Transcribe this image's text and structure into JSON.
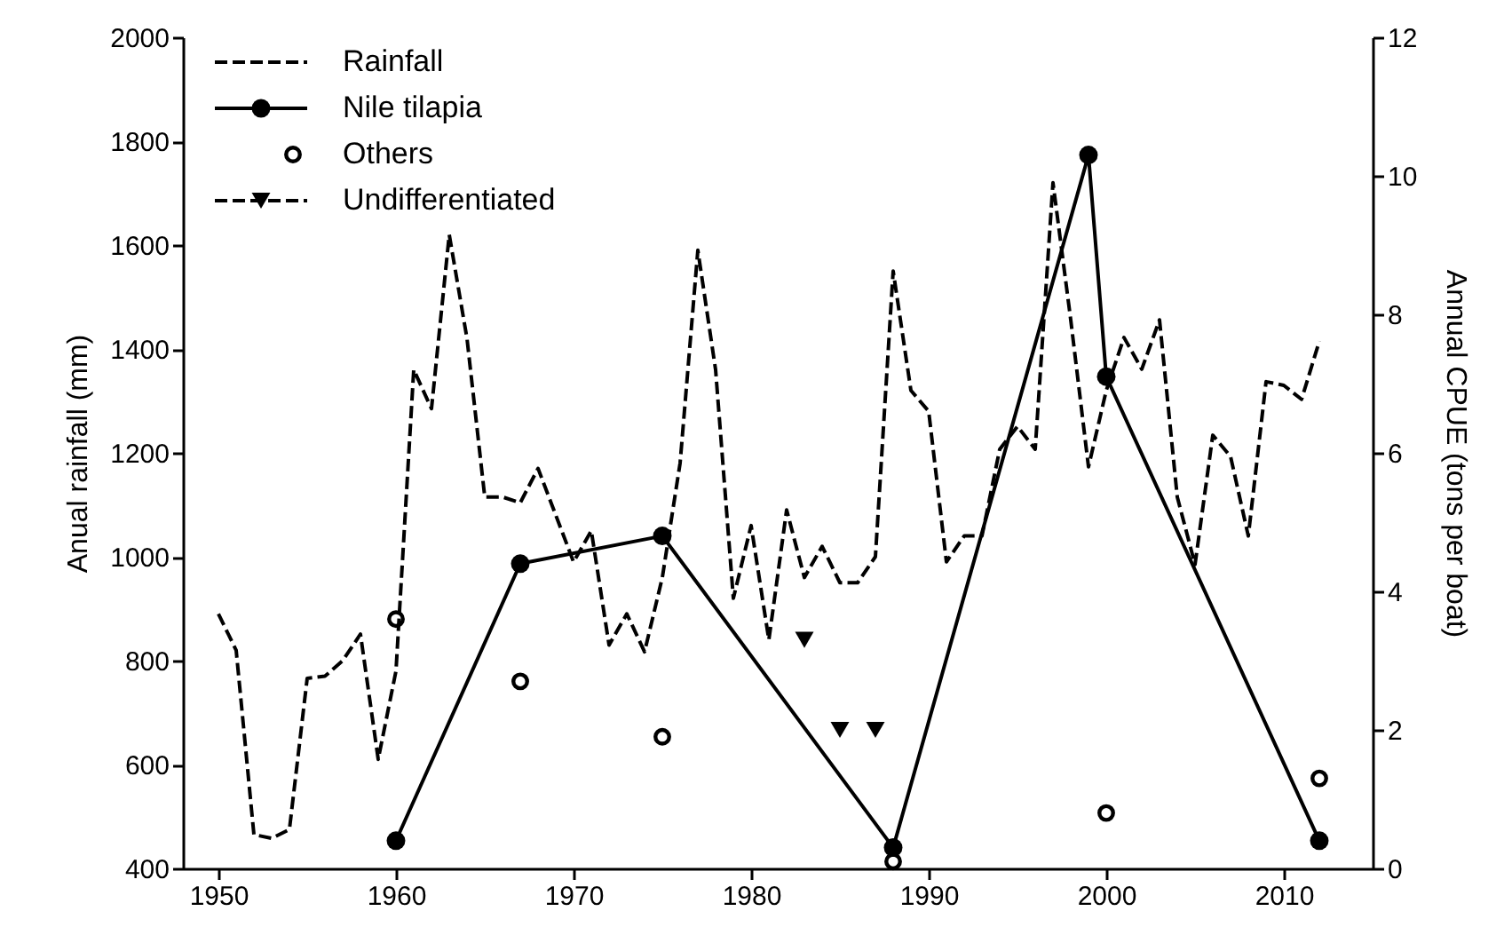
{
  "chart_data": {
    "type": "line",
    "xlim": [
      1948,
      2015
    ],
    "xticks": [
      1950,
      1960,
      1970,
      1980,
      1990,
      2000,
      2010
    ],
    "ylim": [
      400,
      2000
    ],
    "yticks": [
      400,
      600,
      800,
      1000,
      1200,
      1400,
      1600,
      1800,
      2000
    ],
    "y2lim": [
      0,
      12
    ],
    "y2ticks": [
      0,
      2,
      4,
      6,
      8,
      10,
      12
    ],
    "ylabel": "Anual rainfall (mm)",
    "y2label": "Annual CPUE (tons per boat)",
    "grid": false,
    "legend": "top left",
    "series": [
      {
        "name": "Rainfall",
        "line_style": "dashed",
        "marker": "none",
        "color": "#000000",
        "x": [
          1950,
          1951,
          1952,
          1953,
          1954,
          1955,
          1956,
          1957,
          1958,
          1959,
          1960,
          1961,
          1962,
          1963,
          1964,
          1965,
          1966,
          1967,
          1968,
          1969,
          1970,
          1971,
          1972,
          1973,
          1974,
          1975,
          1976,
          1977,
          1978,
          1979,
          1980,
          1981,
          1982,
          1983,
          1984,
          1985,
          1986,
          1987,
          1988,
          1989,
          1990,
          1991,
          1992,
          1993,
          1994,
          1995,
          1996,
          1997,
          1998,
          1999,
          2000,
          2001,
          2002,
          2003,
          2004,
          2005,
          2006,
          2007,
          2008,
          2009,
          2010,
          2011,
          2012
        ],
        "values": [
          890,
          820,
          465,
          458,
          475,
          766,
          770,
          800,
          851,
          610,
          780,
          1360,
          1285,
          1620,
          1420,
          1115,
          1115,
          1104,
          1170,
          1080,
          990,
          1050,
          830,
          890,
          817,
          960,
          1180,
          1590,
          1360,
          920,
          1060,
          840,
          1090,
          960,
          1020,
          950,
          950,
          1000,
          1550,
          1320,
          1280,
          990,
          1040,
          1040,
          1207,
          1251,
          1207,
          1720,
          1456,
          1173,
          1320,
          1422,
          1361,
          1456,
          1115,
          985,
          1234,
          1193,
          1040,
          1337,
          1330,
          1303,
          1415
        ]
      },
      {
        "name": "Nile tilapia",
        "type": "line",
        "line_style": "solid",
        "marker": "circle",
        "axis": "y2",
        "color": "#000000",
        "x": [
          1960,
          1967,
          1975,
          1988,
          1999,
          2000,
          2012
        ],
        "values": [
          0.4,
          4.4,
          4.8,
          0.3,
          10.3,
          7.1,
          0.4
        ]
      },
      {
        "name": "Others",
        "type": "scatter",
        "marker": "circle",
        "axis": "y2",
        "color": "#000000",
        "x": [
          1960,
          1967,
          1975,
          1988,
          2000,
          2012
        ],
        "values": [
          3.6,
          2.7,
          1.9,
          0.1,
          0.8,
          1.3
        ]
      },
      {
        "name": "Undifferentiated",
        "type": "scatter",
        "marker": "triangle",
        "line_style": "dashed",
        "axis": "y2",
        "color": "#000000",
        "x": [
          1983,
          1985,
          1987
        ],
        "values": [
          3.3,
          2.0,
          2.0
        ]
      }
    ]
  }
}
